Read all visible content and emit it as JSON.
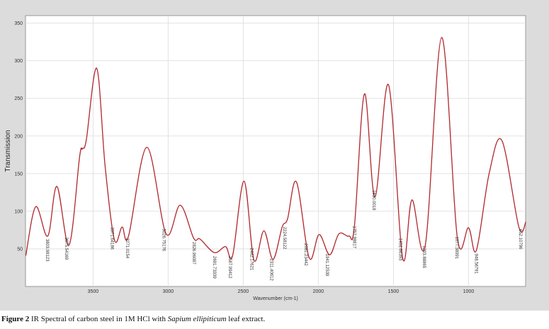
{
  "chart_data": {
    "type": "line",
    "y_label": "Transmission",
    "x_label": "Wavenumber (cm-1)",
    "xlim": [
      3950,
      620
    ],
    "ylim": [
      0,
      360
    ],
    "xticks": [
      3500,
      3000,
      2500,
      2000,
      1500,
      1000
    ],
    "yticks": [
      50,
      100,
      150,
      200,
      250,
      300,
      350
    ],
    "grid": true,
    "color": "#b0272d",
    "x": [
      3948,
      3882,
      3802,
      3741,
      3660,
      3590,
      3571,
      3545,
      3476,
      3420,
      3358,
      3307,
      3264,
      3142,
      3014,
      2920,
      2830,
      2788,
      2693,
      2618,
      2571,
      2495,
      2429,
      2363,
      2302,
      2241,
      2205,
      2146,
      2061,
      1995,
      1925,
      1863,
      1797,
      1760,
      1693,
      1623,
      1533,
      1439,
      1377,
      1288,
      1179,
      1075,
      1000,
      948,
      863,
      778,
      665,
      618
    ],
    "values": [
      41,
      106,
      67,
      133,
      55,
      172,
      183,
      195,
      290,
      160,
      62,
      79,
      67,
      185,
      70,
      108,
      64,
      63,
      45,
      53,
      41,
      140,
      35,
      74,
      36,
      79,
      90,
      139,
      38,
      69,
      42,
      70,
      67,
      80,
      256,
      119,
      268,
      38,
      115,
      55,
      331,
      65,
      78,
      48,
      150,
      194,
      79,
      86
    ],
    "annotations": [
      {
        "x": 3803.98123,
        "label": "3803.98123"
      },
      {
        "x": 3675.54169,
        "label": "3675.54169"
      },
      {
        "x": 3371.64186,
        "label": "3371.64186"
      },
      {
        "x": 3271.0154,
        "label": "3271.0154"
      },
      {
        "x": 3026.75176,
        "label": "3026.75176"
      },
      {
        "x": 2826.96087,
        "label": "2826.96087"
      },
      {
        "x": 2691.73339,
        "label": "2691.73339"
      },
      {
        "x": 2587.99412,
        "label": "2587.99412"
      },
      {
        "x": 2442.17621,
        "label": "2442.17621"
      },
      {
        "x": 2311.40612,
        "label": "2311.40612"
      },
      {
        "x": 2224.58122,
        "label": "2224.58122"
      },
      {
        "x": 2081.23442,
        "label": "2081.23442"
      },
      {
        "x": 1941.12539,
        "label": "1941.12539"
      },
      {
        "x": 1757.98817,
        "label": "1757.98817"
      },
      {
        "x": 1630.0018,
        "label": "1630.0018"
      },
      {
        "x": 1451.66393,
        "label": "1451.66393"
      },
      {
        "x": 1293.88865,
        "label": "1293.88865"
      },
      {
        "x": 1077.38991,
        "label": "1077.38991"
      },
      {
        "x": 948.56791,
        "label": "948.56791"
      },
      {
        "x": 652.10796,
        "label": "652.10796"
      }
    ]
  },
  "caption": {
    "label": "Figure 2",
    "text_before": "IR Spectral of carbon steel in 1M HCl with",
    "italic": "Sapium ellipiticum",
    "text_after": "leaf extract."
  }
}
